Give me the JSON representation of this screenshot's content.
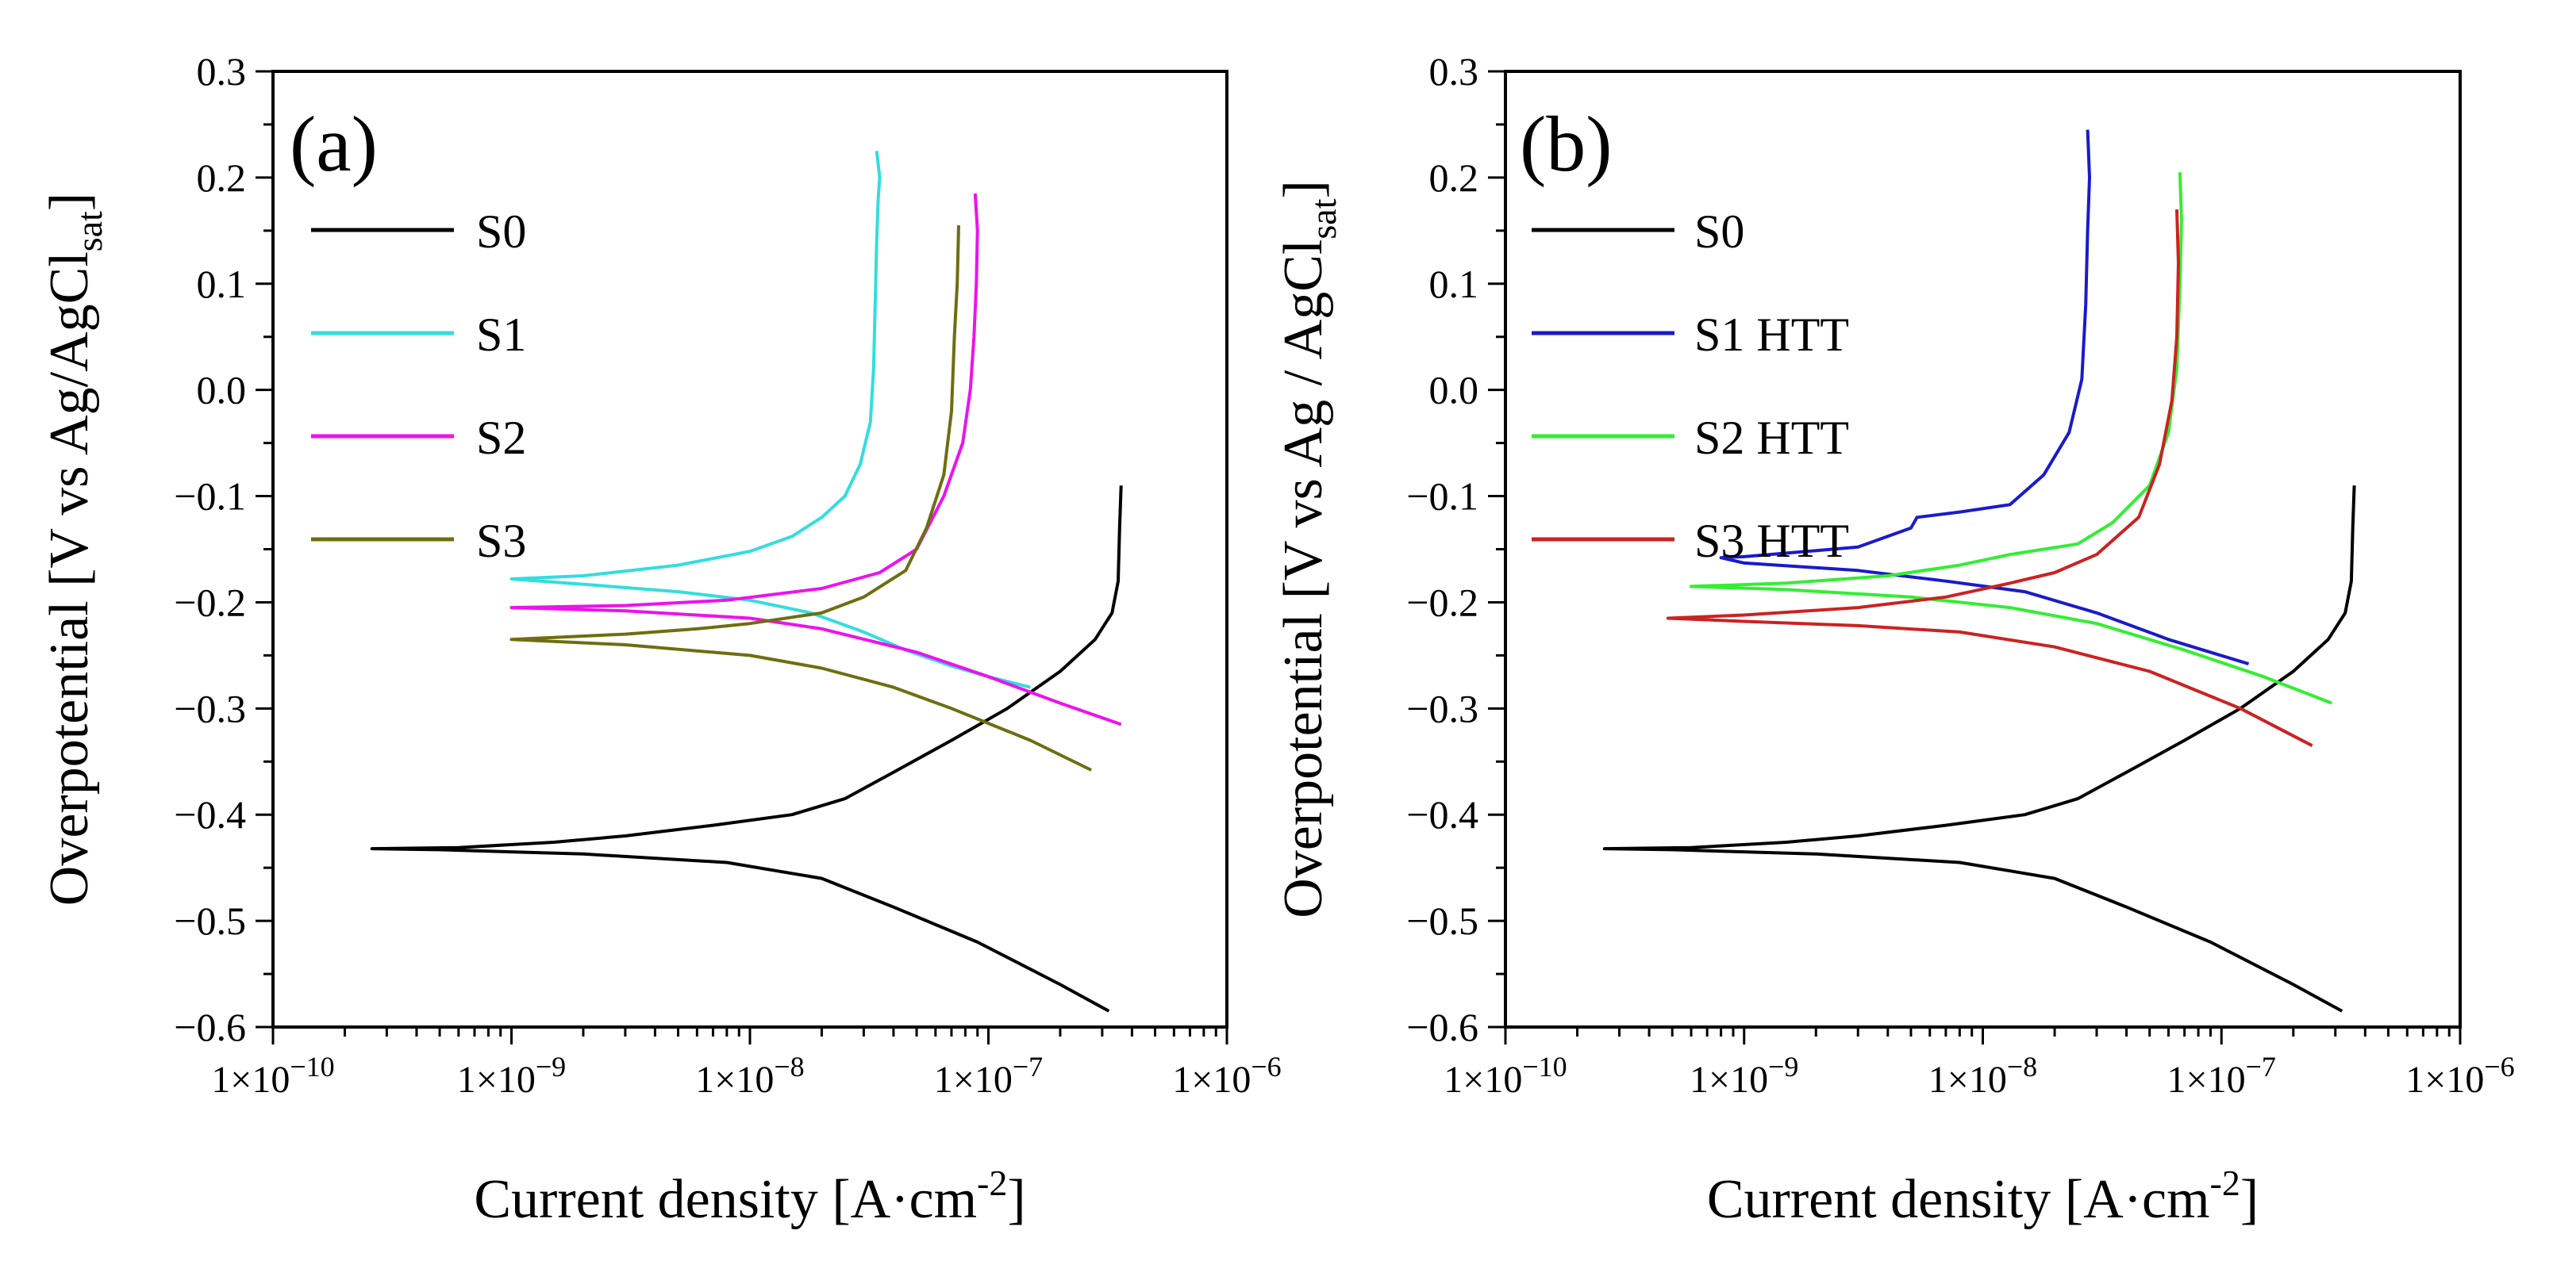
{
  "figure": {
    "panels": [
      "a",
      "b"
    ]
  },
  "chart_data": [
    {
      "type": "line",
      "panel_label": "(a)",
      "xscale": "log",
      "xlim": [
        1e-10,
        1e-06
      ],
      "ylim": [
        -0.6,
        0.3
      ],
      "xlabel": "Current density [A·cm",
      "xlabel_sup": "-2",
      "xlabel_end": "]",
      "ylabel": "Overpotential [V vs Ag/AgCl",
      "ylabel_sub": "sat",
      "ylabel_end": "]",
      "x_tick_values": [
        1e-10,
        1e-09,
        1e-08,
        1e-07,
        1e-06
      ],
      "x_tick_labels": [
        {
          "base": "1×10",
          "exp": "−10"
        },
        {
          "base": "1×10",
          "exp": "−9"
        },
        {
          "base": "1×10",
          "exp": "−8"
        },
        {
          "base": "1×10",
          "exp": "−7"
        },
        {
          "base": "1×10",
          "exp": "−6"
        }
      ],
      "y_ticks": [
        0.3,
        0.2,
        0.1,
        0.0,
        -0.1,
        -0.2,
        -0.3,
        -0.4,
        -0.5,
        -0.6
      ],
      "y_tick_labels": [
        "0.3",
        "0.2",
        "0.1",
        "0.0",
        "−0.1",
        "−0.2",
        "−0.3",
        "−0.4",
        "−0.5",
        "−0.6"
      ],
      "legend": {
        "position": "top-left"
      },
      "series": [
        {
          "name": "S0",
          "color": "#000000",
          "points": [
            [
              3.2e-07,
              -0.585
            ],
            [
              2e-07,
              -0.56
            ],
            [
              9e-08,
              -0.52
            ],
            [
              4e-08,
              -0.487
            ],
            [
              2e-08,
              -0.46
            ],
            [
              8e-09,
              -0.445
            ],
            [
              2e-09,
              -0.437
            ],
            [
              5e-10,
              -0.433
            ],
            [
              2.6e-10,
              -0.432
            ],
            [
              6e-10,
              -0.431
            ],
            [
              1.5e-09,
              -0.426
            ],
            [
              3e-09,
              -0.42
            ],
            [
              7e-09,
              -0.41
            ],
            [
              1.5e-08,
              -0.4
            ],
            [
              2.5e-08,
              -0.385
            ],
            [
              4e-08,
              -0.36
            ],
            [
              7e-08,
              -0.33
            ],
            [
              1.2e-07,
              -0.3
            ],
            [
              2e-07,
              -0.265
            ],
            [
              2.8e-07,
              -0.235
            ],
            [
              3.3e-07,
              -0.21
            ],
            [
              3.5e-07,
              -0.18
            ],
            [
              3.55e-07,
              -0.13
            ],
            [
              3.6e-07,
              -0.09
            ]
          ]
        },
        {
          "name": "S1",
          "color": "#33DDDD",
          "points": [
            [
              1.5e-07,
              -0.28
            ],
            [
              1e-07,
              -0.27
            ],
            [
              7e-08,
              -0.26
            ],
            [
              4.5e-08,
              -0.245
            ],
            [
              3e-08,
              -0.228
            ],
            [
              1.8e-08,
              -0.21
            ],
            [
              1e-08,
              -0.198
            ],
            [
              5e-09,
              -0.19
            ],
            [
              2e-09,
              -0.183
            ],
            [
              1e-09,
              -0.178
            ],
            [
              2e-09,
              -0.175
            ],
            [
              5e-09,
              -0.165
            ],
            [
              1e-08,
              -0.152
            ],
            [
              1.5e-08,
              -0.138
            ],
            [
              2e-08,
              -0.12
            ],
            [
              2.5e-08,
              -0.1
            ],
            [
              2.9e-08,
              -0.07
            ],
            [
              3.2e-08,
              -0.03
            ],
            [
              3.3e-08,
              0.02
            ],
            [
              3.35e-08,
              0.08
            ],
            [
              3.4e-08,
              0.14
            ],
            [
              3.45e-08,
              0.18
            ],
            [
              3.5e-08,
              0.2
            ],
            [
              3.4e-08,
              0.225
            ]
          ]
        },
        {
          "name": "S2",
          "color": "#EE11EE",
          "points": [
            [
              3.6e-07,
              -0.315
            ],
            [
              2e-07,
              -0.295
            ],
            [
              1e-07,
              -0.27
            ],
            [
              5e-08,
              -0.247
            ],
            [
              2e-08,
              -0.225
            ],
            [
              1e-08,
              -0.215
            ],
            [
              3e-09,
              -0.208
            ],
            [
              1e-09,
              -0.205
            ],
            [
              3e-09,
              -0.203
            ],
            [
              8e-09,
              -0.198
            ],
            [
              2e-08,
              -0.187
            ],
            [
              3.5e-08,
              -0.172
            ],
            [
              5e-08,
              -0.15
            ],
            [
              6.5e-08,
              -0.1
            ],
            [
              7.8e-08,
              -0.05
            ],
            [
              8.4e-08,
              0.0
            ],
            [
              8.7e-08,
              0.05
            ],
            [
              8.9e-08,
              0.1
            ],
            [
              9e-08,
              0.15
            ],
            [
              8.8e-08,
              0.185
            ]
          ]
        },
        {
          "name": "S3",
          "color": "#6E6E10",
          "points": [
            [
              2.7e-07,
              -0.358
            ],
            [
              1.5e-07,
              -0.33
            ],
            [
              7e-08,
              -0.3
            ],
            [
              4e-08,
              -0.28
            ],
            [
              2e-08,
              -0.262
            ],
            [
              1e-08,
              -0.25
            ],
            [
              3e-09,
              -0.24
            ],
            [
              1e-09,
              -0.235
            ],
            [
              3e-09,
              -0.23
            ],
            [
              6e-09,
              -0.225
            ],
            [
              1e-08,
              -0.22
            ],
            [
              2e-08,
              -0.21
            ],
            [
              3e-08,
              -0.195
            ],
            [
              4.5e-08,
              -0.17
            ],
            [
              5.5e-08,
              -0.13
            ],
            [
              6.5e-08,
              -0.08
            ],
            [
              7e-08,
              -0.02
            ],
            [
              7.2e-08,
              0.05
            ],
            [
              7.4e-08,
              0.1
            ],
            [
              7.5e-08,
              0.155
            ]
          ]
        }
      ]
    },
    {
      "type": "line",
      "panel_label": "(b)",
      "xscale": "log",
      "xlim": [
        1e-10,
        1e-06
      ],
      "ylim": [
        -0.6,
        0.3
      ],
      "xlabel": "Current density [A·cm",
      "xlabel_sup": "-2",
      "xlabel_end": "]",
      "ylabel": "Overpotential [V vs Ag / AgCl",
      "ylabel_sub": "sat",
      "ylabel_end": "]",
      "x_tick_values": [
        1e-10,
        1e-09,
        1e-08,
        1e-07,
        1e-06
      ],
      "x_tick_labels": [
        {
          "base": "1×10",
          "exp": "−10"
        },
        {
          "base": "1×10",
          "exp": "−9"
        },
        {
          "base": "1×10",
          "exp": "−8"
        },
        {
          "base": "1×10",
          "exp": "−7"
        },
        {
          "base": "1×10",
          "exp": "−6"
        }
      ],
      "y_ticks": [
        0.3,
        0.2,
        0.1,
        0.0,
        -0.1,
        -0.2,
        -0.3,
        -0.4,
        -0.5,
        -0.6
      ],
      "y_tick_labels": [
        "0.3",
        "0.2",
        "0.1",
        "0.0",
        "−0.1",
        "−0.2",
        "−0.3",
        "−0.4",
        "−0.5",
        "−0.6"
      ],
      "legend": {
        "position": "top-left"
      },
      "series": [
        {
          "name": "S0",
          "color": "#000000",
          "points": [
            [
              3.2e-07,
              -0.585
            ],
            [
              2e-07,
              -0.56
            ],
            [
              9e-08,
              -0.52
            ],
            [
              4e-08,
              -0.487
            ],
            [
              2e-08,
              -0.46
            ],
            [
              8e-09,
              -0.445
            ],
            [
              2e-09,
              -0.437
            ],
            [
              5e-10,
              -0.433
            ],
            [
              2.6e-10,
              -0.432
            ],
            [
              6e-10,
              -0.431
            ],
            [
              1.5e-09,
              -0.426
            ],
            [
              3e-09,
              -0.42
            ],
            [
              7e-09,
              -0.41
            ],
            [
              1.5e-08,
              -0.4
            ],
            [
              2.5e-08,
              -0.385
            ],
            [
              4e-08,
              -0.36
            ],
            [
              7e-08,
              -0.33
            ],
            [
              1.2e-07,
              -0.3
            ],
            [
              2e-07,
              -0.265
            ],
            [
              2.8e-07,
              -0.235
            ],
            [
              3.3e-07,
              -0.21
            ],
            [
              3.5e-07,
              -0.18
            ],
            [
              3.55e-07,
              -0.13
            ],
            [
              3.6e-07,
              -0.09
            ]
          ]
        },
        {
          "name": "S1 HTT",
          "color": "#1A1ACC",
          "points": [
            [
              1.3e-07,
              -0.258
            ],
            [
              6e-08,
              -0.235
            ],
            [
              3e-08,
              -0.21
            ],
            [
              1.5e-08,
              -0.19
            ],
            [
              7e-09,
              -0.18
            ],
            [
              3e-09,
              -0.17
            ],
            [
              1e-09,
              -0.163
            ],
            [
              8e-10,
              -0.158
            ],
            [
              1e-09,
              -0.157
            ],
            [
              3e-09,
              -0.148
            ],
            [
              5e-09,
              -0.13
            ],
            [
              5.3e-09,
              -0.12
            ],
            [
              8e-09,
              -0.115
            ],
            [
              1.3e-08,
              -0.108
            ],
            [
              1.8e-08,
              -0.08
            ],
            [
              2.3e-08,
              -0.04
            ],
            [
              2.6e-08,
              0.01
            ],
            [
              2.7e-08,
              0.08
            ],
            [
              2.75e-08,
              0.15
            ],
            [
              2.8e-08,
              0.2
            ],
            [
              2.75e-08,
              0.245
            ]
          ]
        },
        {
          "name": "S2 HTT",
          "color": "#33EE33",
          "points": [
            [
              2.9e-07,
              -0.295
            ],
            [
              1.5e-07,
              -0.27
            ],
            [
              7e-08,
              -0.245
            ],
            [
              3e-08,
              -0.22
            ],
            [
              1.3e-08,
              -0.205
            ],
            [
              5e-09,
              -0.195
            ],
            [
              1.5e-09,
              -0.188
            ],
            [
              6e-10,
              -0.185
            ],
            [
              1.5e-09,
              -0.182
            ],
            [
              4e-09,
              -0.175
            ],
            [
              8e-09,
              -0.165
            ],
            [
              1.3e-08,
              -0.155
            ],
            [
              2.5e-08,
              -0.145
            ],
            [
              3.5e-08,
              -0.125
            ],
            [
              5e-08,
              -0.09
            ],
            [
              6e-08,
              -0.04
            ],
            [
              6.5e-08,
              0.02
            ],
            [
              6.7e-08,
              0.1
            ],
            [
              6.8e-08,
              0.16
            ],
            [
              6.7e-08,
              0.205
            ]
          ]
        },
        {
          "name": "S3 HTT",
          "color": "#CC2222",
          "points": [
            [
              2.4e-07,
              -0.335
            ],
            [
              1.2e-07,
              -0.3
            ],
            [
              5e-08,
              -0.265
            ],
            [
              2e-08,
              -0.242
            ],
            [
              8e-09,
              -0.228
            ],
            [
              3e-09,
              -0.222
            ],
            [
              1e-09,
              -0.218
            ],
            [
              4.8e-10,
              -0.215
            ],
            [
              1e-09,
              -0.212
            ],
            [
              3e-09,
              -0.205
            ],
            [
              7e-09,
              -0.195
            ],
            [
              1.3e-08,
              -0.182
            ],
            [
              2e-08,
              -0.172
            ],
            [
              3e-08,
              -0.155
            ],
            [
              4.5e-08,
              -0.12
            ],
            [
              5.5e-08,
              -0.07
            ],
            [
              6.2e-08,
              -0.01
            ],
            [
              6.5e-08,
              0.05
            ],
            [
              6.6e-08,
              0.12
            ],
            [
              6.5e-08,
              0.17
            ]
          ]
        }
      ]
    }
  ]
}
